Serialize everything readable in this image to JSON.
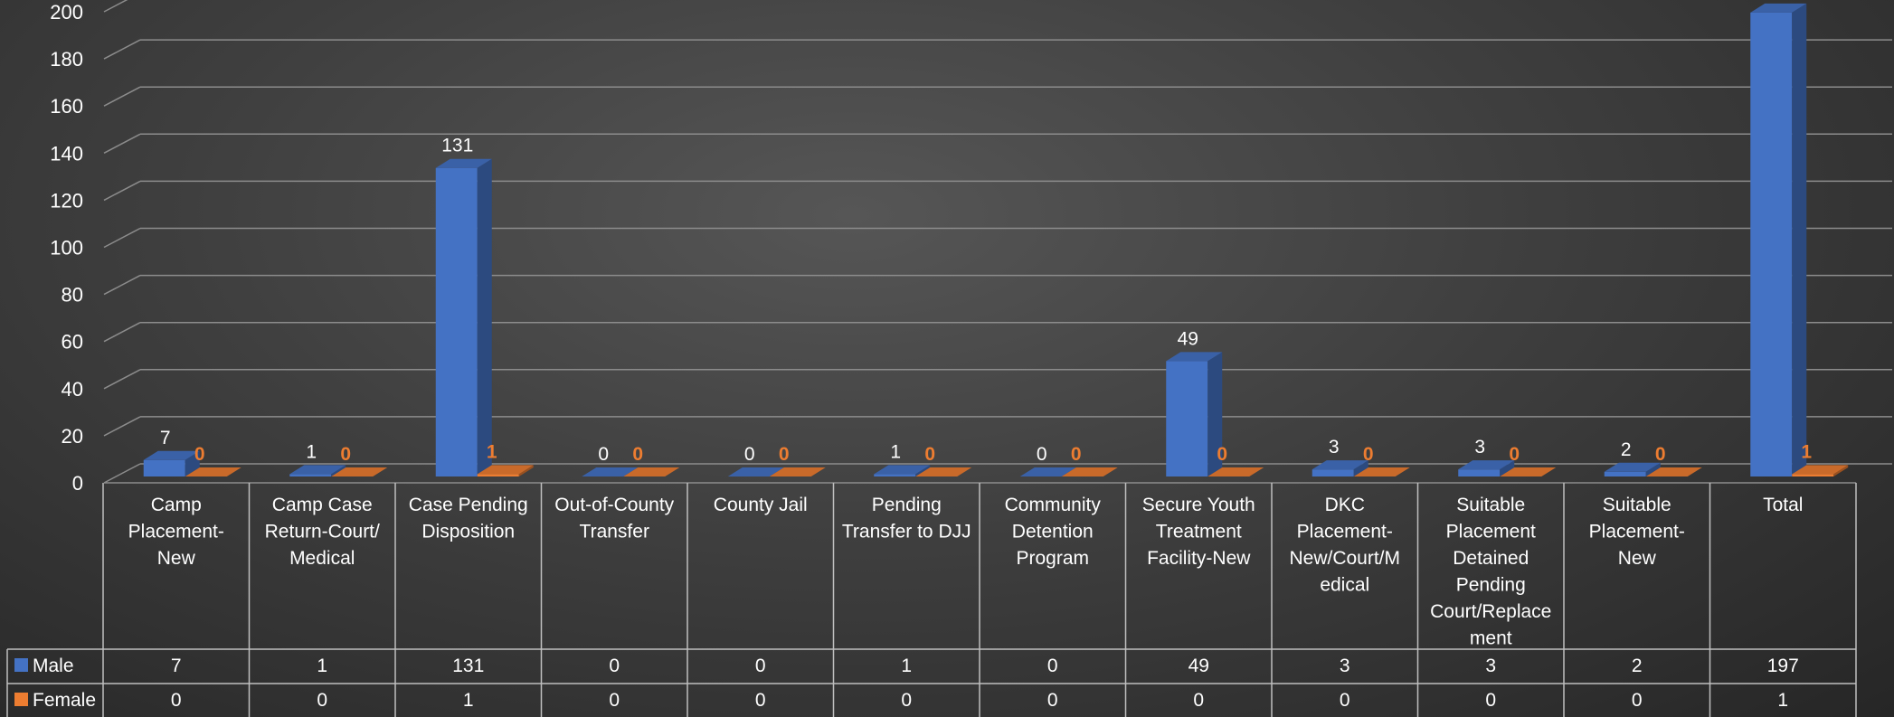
{
  "chart_data": {
    "type": "bar",
    "title": "",
    "xlabel": "",
    "ylabel": "",
    "ylim": [
      0,
      200
    ],
    "yticks": [
      0,
      20,
      40,
      60,
      80,
      100,
      120,
      140,
      160,
      180,
      200
    ],
    "grid": true,
    "legend": "data-table",
    "categories": [
      [
        "Camp",
        "Placement-",
        "New"
      ],
      [
        "Camp Case",
        "Return-Court/",
        "Medical"
      ],
      [
        "Case Pending",
        "Disposition"
      ],
      [
        "Out-of-County",
        "Transfer"
      ],
      [
        "County Jail"
      ],
      [
        "Pending",
        "Transfer to DJJ"
      ],
      [
        "Community",
        "Detention",
        "Program"
      ],
      [
        "Secure Youth",
        "Treatment",
        "Facility-New"
      ],
      [
        "DKC",
        "Placement-",
        "New/Court/M",
        "edical"
      ],
      [
        "Suitable",
        "Placement",
        "Detained",
        "Pending",
        "Court/Replace",
        "ment"
      ],
      [
        "Suitable",
        "Placement-",
        "New"
      ],
      [
        "Total"
      ]
    ],
    "series": [
      {
        "name": "Male",
        "color": "#4472C4",
        "values": [
          7,
          1,
          131,
          0,
          0,
          1,
          0,
          49,
          3,
          3,
          2,
          197
        ]
      },
      {
        "name": "Female",
        "color": "#ED7D31",
        "values": [
          0,
          0,
          1,
          0,
          0,
          0,
          0,
          0,
          0,
          0,
          0,
          1
        ]
      }
    ],
    "colors": {
      "text": "#FFFFFF",
      "grid": "#8C8C8C",
      "table_border": "#BFBFBF"
    }
  }
}
